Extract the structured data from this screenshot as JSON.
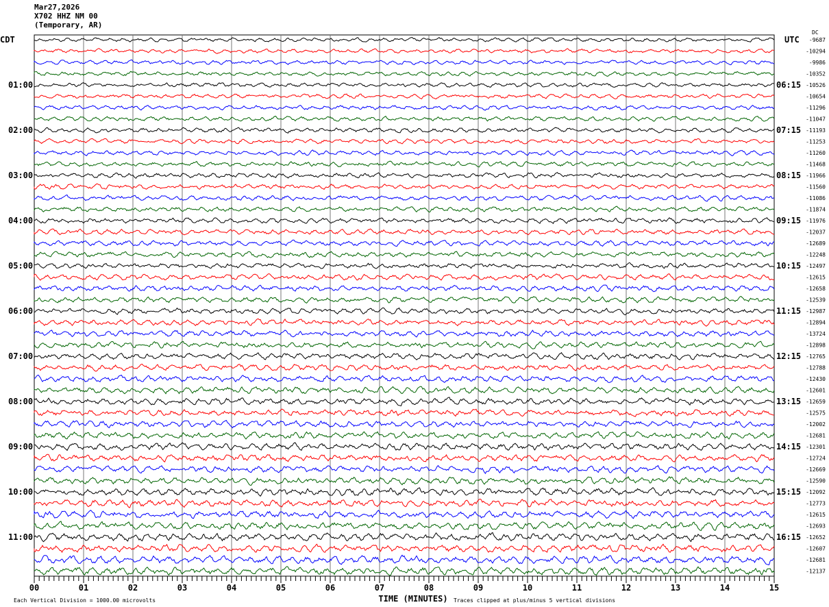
{
  "header": {
    "date": "Mar27,2026",
    "station": "X702 HHZ NM 00",
    "location": "(Temporary, AR)"
  },
  "chart_data": {
    "type": "line",
    "title": "X702 HHZ NM 00 helicorder",
    "xlabel": "TIME (MINUTES)",
    "xlim": [
      0,
      15
    ],
    "x_ticks": [
      "00",
      "01",
      "02",
      "03",
      "04",
      "05",
      "06",
      "07",
      "08",
      "09",
      "10",
      "11",
      "12",
      "13",
      "14",
      "15"
    ],
    "left_timezone": "CDT",
    "right_timezone": "UTC",
    "right_header": "DC",
    "left_labels": [
      "01:00",
      "02:00",
      "03:00",
      "04:00",
      "05:00",
      "06:00",
      "07:00",
      "08:00",
      "09:00",
      "10:00",
      "11:00"
    ],
    "right_labels": [
      "06:15",
      "07:15",
      "08:15",
      "09:15",
      "10:15",
      "11:15",
      "12:15",
      "13:15",
      "14:15",
      "15:15",
      "16:15"
    ],
    "traces_per_hour": 4,
    "trace_colors": [
      "#000000",
      "#ff0000",
      "#0000ff",
      "#006400"
    ],
    "dc_offsets": [
      -9687,
      -10294,
      -9986,
      -10352,
      -10526,
      -10654,
      -11296,
      -11047,
      -11193,
      -11253,
      -11260,
      -11468,
      -11966,
      -11560,
      -11086,
      -11874,
      -11976,
      -12037,
      -12689,
      -12248,
      -12497,
      -12615,
      -12658,
      -12539,
      -12987,
      -12894,
      -13724,
      -12898,
      -12765,
      -12788,
      -12430,
      -12601,
      -12659,
      -12575,
      -12002,
      -12681,
      -12301,
      -12724,
      -12669,
      -12590,
      -12092,
      -12773,
      -12615,
      -12693,
      -12652,
      -12607,
      -12681,
      -12137
    ],
    "scale_note": "Each Vertical Division = 1000.00 microvolts",
    "clip_note": "Traces clipped at plus/minus 5 vertical divisions"
  }
}
